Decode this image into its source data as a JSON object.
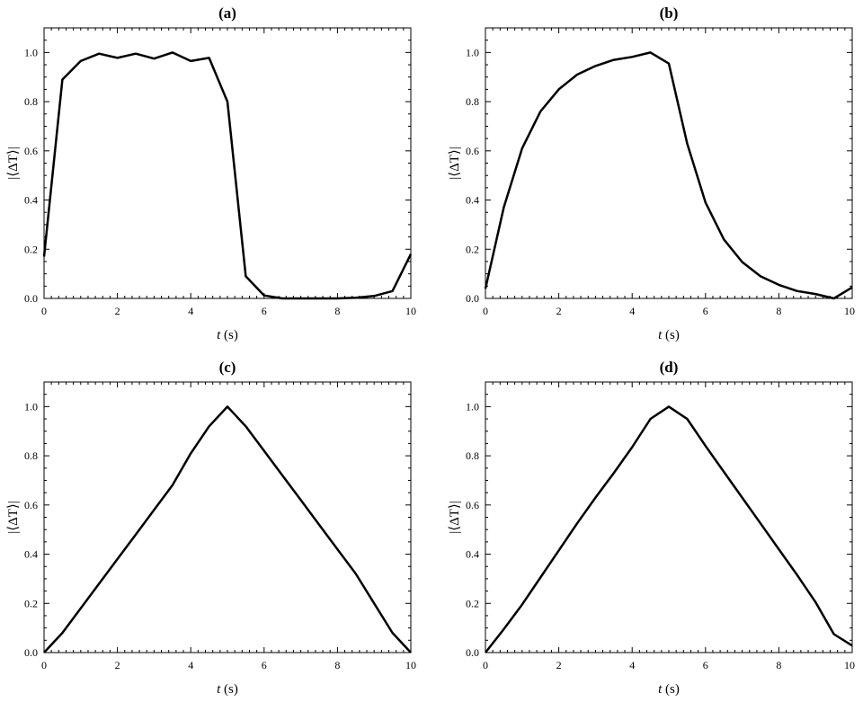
{
  "chart_data": [
    {
      "type": "line",
      "title": "(a)",
      "xlabel_var": "t",
      "xlabel_unit": " (s)",
      "ylabel": "|⟨ΔT⟩|",
      "xlim": [
        0,
        10
      ],
      "ylim": [
        0,
        1.1
      ],
      "x_ticks": [
        "0",
        "2",
        "4",
        "6",
        "8",
        "10"
      ],
      "y_ticks": [
        "0.0",
        "0.2",
        "0.4",
        "0.6",
        "0.8",
        "1.0"
      ],
      "grid": false,
      "x": [
        0,
        0.5,
        1,
        1.5,
        2,
        2.5,
        3,
        3.5,
        4,
        4.5,
        5,
        5.5,
        6,
        6.5,
        7,
        7.5,
        8,
        8.5,
        9,
        9.5,
        10
      ],
      "y": [
        0.17,
        0.89,
        0.965,
        0.995,
        0.978,
        0.995,
        0.975,
        1.0,
        0.965,
        0.978,
        0.8,
        0.09,
        0.012,
        0.0,
        0.0,
        0.0,
        0.0,
        0.003,
        0.01,
        0.03,
        0.18
      ]
    },
    {
      "type": "line",
      "title": "(b)",
      "xlabel_var": "t",
      "xlabel_unit": " (s)",
      "ylabel": "|⟨ΔT⟩|",
      "xlim": [
        0,
        10
      ],
      "ylim": [
        0,
        1.1
      ],
      "x_ticks": [
        "0",
        "2",
        "4",
        "6",
        "8",
        "10"
      ],
      "y_ticks": [
        "0.0",
        "0.2",
        "0.4",
        "0.6",
        "0.8",
        "1.0"
      ],
      "grid": false,
      "x": [
        0,
        0.5,
        1,
        1.5,
        2,
        2.5,
        3,
        3.5,
        4,
        4.5,
        5,
        5.5,
        6,
        6.5,
        7,
        7.5,
        8,
        8.5,
        9,
        9.5,
        10
      ],
      "y": [
        0.04,
        0.37,
        0.61,
        0.76,
        0.85,
        0.91,
        0.945,
        0.97,
        0.982,
        1.0,
        0.955,
        0.63,
        0.39,
        0.24,
        0.148,
        0.09,
        0.055,
        0.03,
        0.018,
        0.0,
        0.045
      ]
    },
    {
      "type": "line",
      "title": "(c)",
      "xlabel_var": "t",
      "xlabel_unit": " (s)",
      "ylabel": "|⟨ΔT⟩|",
      "xlim": [
        0,
        10
      ],
      "ylim": [
        0,
        1.1
      ],
      "x_ticks": [
        "0",
        "2",
        "4",
        "6",
        "8",
        "10"
      ],
      "y_ticks": [
        "0.0",
        "0.2",
        "0.4",
        "0.6",
        "0.8",
        "1.0"
      ],
      "grid": false,
      "x": [
        0,
        0.5,
        1,
        1.5,
        2,
        2.5,
        3,
        3.5,
        4,
        4.5,
        5,
        5.5,
        6,
        6.5,
        7,
        7.5,
        8,
        8.5,
        9,
        9.5,
        10
      ],
      "y": [
        0.0,
        0.08,
        0.18,
        0.28,
        0.38,
        0.48,
        0.58,
        0.68,
        0.81,
        0.92,
        1.0,
        0.92,
        0.82,
        0.72,
        0.62,
        0.52,
        0.42,
        0.32,
        0.2,
        0.08,
        0.0
      ]
    },
    {
      "type": "line",
      "title": "(d)",
      "xlabel_var": "t",
      "xlabel_unit": " (s)",
      "ylabel": "|⟨ΔT⟩|",
      "xlim": [
        0,
        10
      ],
      "ylim": [
        0,
        1.1
      ],
      "x_ticks": [
        "0",
        "2",
        "4",
        "6",
        "8",
        "10"
      ],
      "y_ticks": [
        "0.0",
        "0.2",
        "0.4",
        "0.6",
        "0.8",
        "1.0"
      ],
      "grid": false,
      "x": [
        0,
        0.5,
        1,
        1.5,
        2,
        2.5,
        3,
        3.5,
        4,
        4.5,
        5,
        5.5,
        6,
        6.5,
        7,
        7.5,
        8,
        8.5,
        9,
        9.5,
        10
      ],
      "y": [
        0.0,
        0.095,
        0.195,
        0.305,
        0.415,
        0.525,
        0.63,
        0.73,
        0.835,
        0.95,
        1.0,
        0.95,
        0.84,
        0.735,
        0.63,
        0.525,
        0.42,
        0.315,
        0.205,
        0.075,
        0.028
      ]
    }
  ]
}
